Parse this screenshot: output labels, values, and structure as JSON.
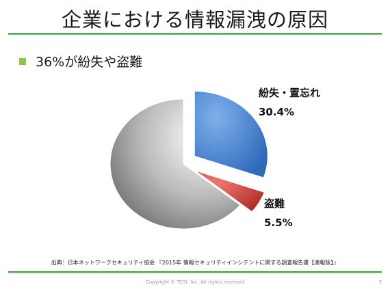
{
  "slide": {
    "title": "企業における情報漏洩の原因",
    "bullet": "36%が紛失や盗難",
    "source": "出典：日本ネットワークセキュリティ協会 『2015年 情報セキュリティインシデントに関する調査報告書【速報版】』",
    "copyright": "Copyright © TCSI, Inc. All rights reserved",
    "page_number": "3"
  },
  "colors": {
    "accent_green": "#3e9a3c",
    "bullet_green": "#8dc63f"
  },
  "chart_data": {
    "type": "pie",
    "start_angle_deg": 0,
    "exploded": true,
    "slices": [
      {
        "label": "紛失・置忘れ",
        "value": 30.4,
        "value_label": "30.4%",
        "color": "#4a86d0"
      },
      {
        "label": "盗難",
        "value": 5.5,
        "value_label": "5.5%",
        "color": "#d44a42"
      },
      {
        "label": "",
        "value": 64.1,
        "value_label": "",
        "color": "#9a9a9a"
      }
    ]
  }
}
